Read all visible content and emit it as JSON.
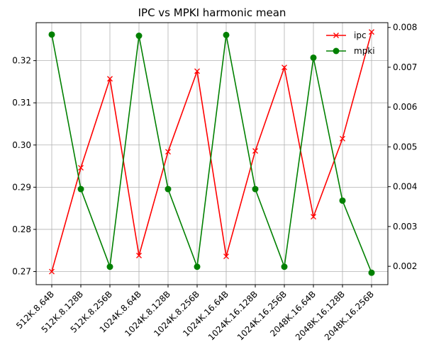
{
  "chart_data": {
    "type": "line",
    "title": "IPC vs MPKI harmonic mean",
    "categories": [
      "512K.8.64B",
      "512K.8.128B",
      "512K.8.256B",
      "1024K.8.64B",
      "1024K.8.128B",
      "1024K.8.256B",
      "1024K.16.64B",
      "1024K.16.128B",
      "1024K.16.256B",
      "2048K.16.64B",
      "2048K.16.128B",
      "2048K.16.256B"
    ],
    "series": [
      {
        "name": "ipc",
        "axis": "left",
        "color": "#ff0000",
        "marker": "x",
        "values": [
          0.27,
          0.2946,
          0.3157,
          0.2738,
          0.2984,
          0.3175,
          0.2736,
          0.2986,
          0.3184,
          0.283,
          0.3015,
          0.3268
        ]
      },
      {
        "name": "mpki",
        "axis": "right",
        "color": "#008000",
        "marker": "o",
        "values": [
          0.00782,
          0.00394,
          0.00199,
          0.00779,
          0.00394,
          0.00199,
          0.00781,
          0.00394,
          0.00199,
          0.00724,
          0.00365,
          0.00184
        ]
      }
    ],
    "y_left": {
      "ylim": [
        0.2669,
        0.329
      ],
      "ticks": [
        0.27,
        0.28,
        0.29,
        0.3,
        0.31,
        0.32
      ],
      "tick_labels": [
        "0.27",
        "0.28",
        "0.29",
        "0.30",
        "0.31",
        "0.32"
      ]
    },
    "y_right": {
      "ylim": [
        0.00154,
        0.00812
      ],
      "ticks": [
        0.002,
        0.003,
        0.004,
        0.005,
        0.006,
        0.007,
        0.008
      ],
      "tick_labels": [
        "0.002",
        "0.003",
        "0.004",
        "0.005",
        "0.006",
        "0.007",
        "0.008"
      ]
    },
    "grid": true,
    "legend": "top-right"
  }
}
